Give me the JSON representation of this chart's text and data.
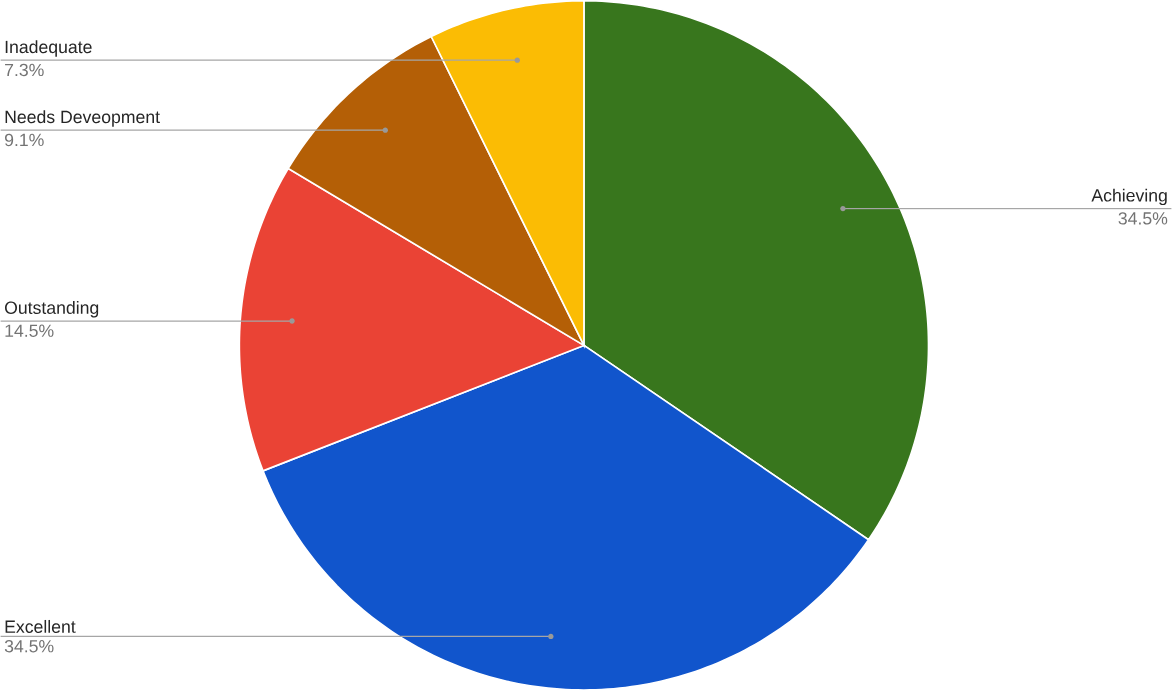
{
  "chart_data": {
    "type": "pie",
    "categories": [
      "Achieving",
      "Excellent",
      "Outstanding",
      "Needs Deveopment",
      "Inadequate"
    ],
    "values": [
      34.5,
      34.5,
      14.5,
      9.1,
      7.3
    ],
    "colors": [
      "#38761d",
      "#1155cc",
      "#ea4335",
      "#b45f06",
      "#fbbc04"
    ],
    "value_labels": [
      "34.5%",
      "34.5%",
      "14.5%",
      "9.1%",
      "7.3%"
    ]
  }
}
